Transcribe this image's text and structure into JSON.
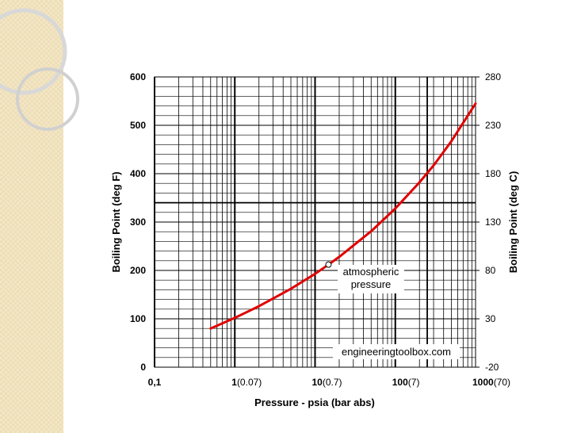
{
  "chart_data": {
    "type": "line",
    "xlabel": "Pressure  - psia (bar abs)",
    "ylabel": "Boiling Point (deg F)",
    "y2label": "Boiling Point (deg C)",
    "x_scale": "log",
    "xlim": [
      0.1,
      1000
    ],
    "ylim": [
      0,
      600
    ],
    "y2lim": [
      -20,
      280
    ],
    "grid": true,
    "x_tick_labels": [
      {
        "value": 0.1,
        "label": "0,1",
        "sub": ""
      },
      {
        "value": 1,
        "label": "1",
        "sub": "(0.07)"
      },
      {
        "value": 10,
        "label": "10",
        "sub": "(0.7)"
      },
      {
        "value": 100,
        "label": "100",
        "sub": "(7)"
      },
      {
        "value": 1000,
        "label": "1000",
        "sub": "(70)"
      }
    ],
    "y_ticks": [
      0,
      100,
      200,
      300,
      400,
      500,
      600
    ],
    "y2_ticks": [
      -20,
      30,
      80,
      130,
      180,
      230,
      280
    ],
    "series": [
      {
        "color": "#e00000",
        "x": [
          0.5,
          1,
          2,
          5,
          10,
          14.7,
          20,
          50,
          100,
          200,
          300,
          500,
          1000
        ],
        "y": [
          80,
          102,
          126,
          162,
          193,
          212,
          228,
          281,
          328,
          382,
          417,
          467,
          545
        ]
      }
    ],
    "annotations": [
      {
        "text_line1": "atmospheric",
        "text_line2": "pressure",
        "x": 14.7,
        "y": 212
      },
      {
        "text": "engineeringtoolbox.com"
      }
    ]
  }
}
